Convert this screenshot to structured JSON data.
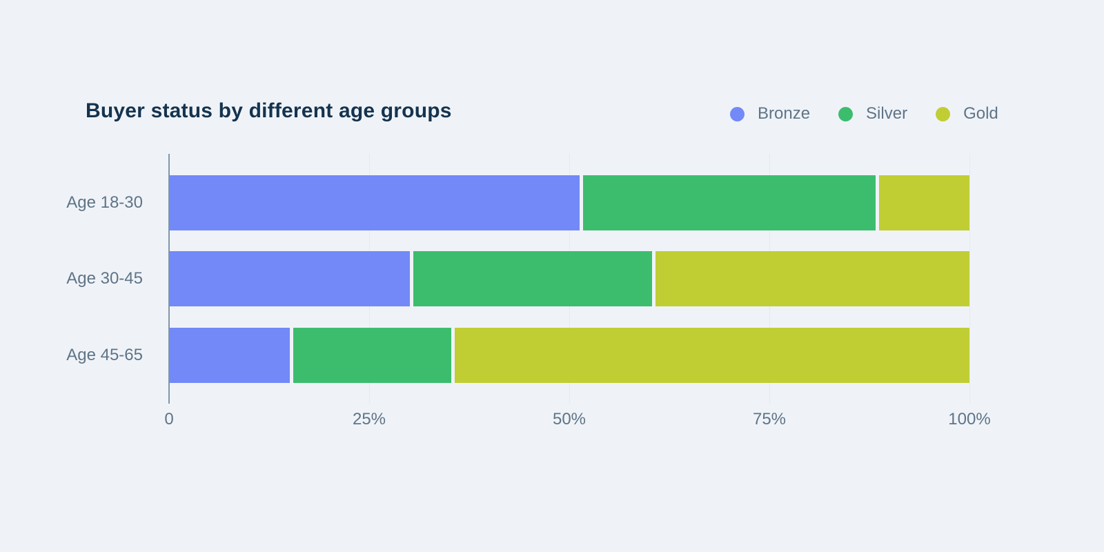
{
  "colors": {
    "background": "#eff3f8",
    "title": "#15334e",
    "label": "#5f7486",
    "gridline": "#e5eaf0",
    "axis_line": "#8096a6",
    "segment_gap": "#ffffff"
  },
  "legend": {
    "items": [
      {
        "label": "Bronze",
        "color": "#7289f7"
      },
      {
        "label": "Silver",
        "color": "#3cbd6e"
      },
      {
        "label": "Gold",
        "color": "#c0ce34"
      }
    ]
  },
  "chart_data": {
    "type": "bar",
    "orientation": "horizontal",
    "stacked": true,
    "normalized_to_100": true,
    "title": "Buyer status by different age groups",
    "categories": [
      "Age 18-30",
      "Age 30-45",
      "Age 45-65"
    ],
    "series": [
      {
        "name": "Bronze",
        "color": "#7289f7",
        "values": [
          51.5,
          30.3,
          15.3
        ]
      },
      {
        "name": "Silver",
        "color": "#3cbd6e",
        "values": [
          37.0,
          30.3,
          20.2
        ]
      },
      {
        "name": "Gold",
        "color": "#c0ce34",
        "values": [
          11.5,
          39.4,
          64.5
        ]
      }
    ],
    "xlabel": "",
    "ylabel": "",
    "xlim": [
      0,
      100
    ],
    "x_ticks": [
      "0",
      "25%",
      "50%",
      "75%",
      "100%"
    ],
    "x_tick_values": [
      0,
      25,
      50,
      75,
      100
    ],
    "grid": true,
    "legend_position": "top-right"
  }
}
